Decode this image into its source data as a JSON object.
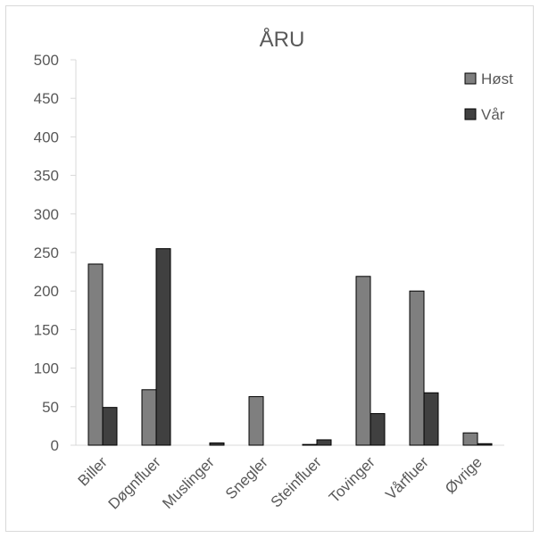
{
  "chart_data": {
    "type": "bar",
    "title": "ÅRU",
    "categories": [
      "Biller",
      "Døgnfluer",
      "Muslinger",
      "Snegler",
      "Steinfluer",
      "Tovinger",
      "Vårfluer",
      "Øvrige"
    ],
    "series": [
      {
        "name": "Høst",
        "values": [
          235,
          72,
          0,
          63,
          1,
          219,
          200,
          16
        ],
        "color": "#7f7f7f"
      },
      {
        "name": "Vår",
        "values": [
          49,
          255,
          3,
          0,
          7,
          41,
          68,
          2
        ],
        "color": "#404040"
      }
    ],
    "yticks": [
      "0",
      "50",
      "100",
      "150",
      "200",
      "250",
      "300",
      "350",
      "400",
      "450",
      "500"
    ],
    "ylim": [
      0,
      500
    ],
    "xlabel": "",
    "ylabel": "",
    "legend_position": "top-right",
    "grid": false
  }
}
